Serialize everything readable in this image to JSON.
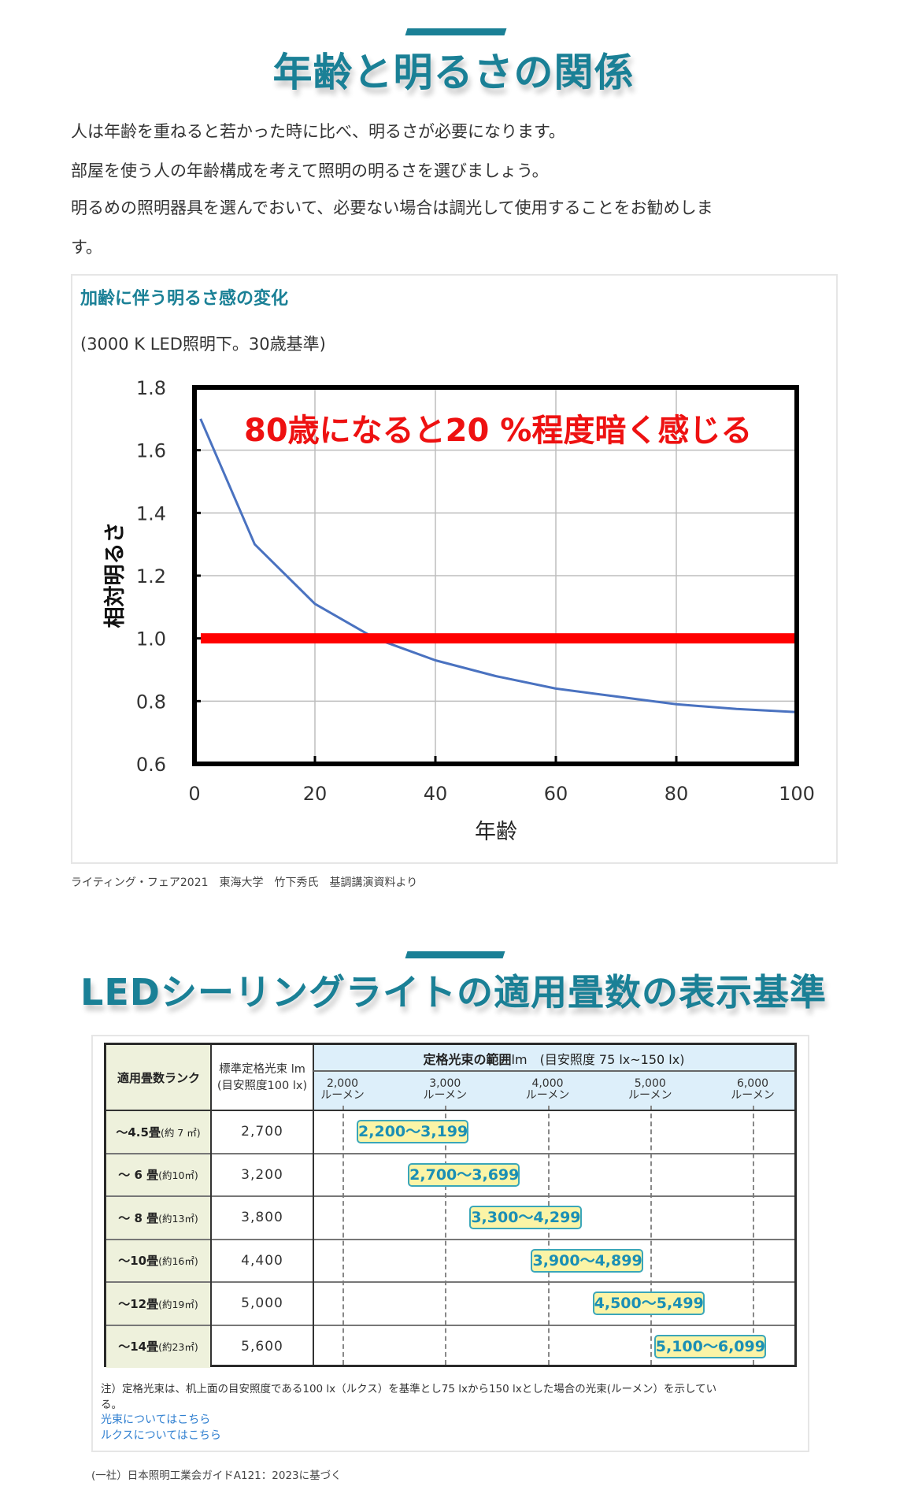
{
  "section1": {
    "title": "年齢と明るさの関係",
    "paragraphs": [
      "人は年齢を重ねると若かった時に比べ、明るさが必要になります。",
      "部屋を使う人の年齢構成を考えて照明の明るさを選びましょう。",
      "明るめの照明器具を選んでおいて、必要ない場合は調光して使用することをお勧めしま",
      "す。"
    ],
    "figure": {
      "title": "加齢に伴う明るさ感の変化",
      "subtitle": "(3000 K LED照明下。30歳基準)"
    },
    "source": "ライティング・フェア2021　東海大学　竹下秀氏　基調講演資料より"
  },
  "chart_data": {
    "type": "line",
    "title": "",
    "xlabel": "年齢",
    "ylabel": "相対明るさ",
    "xlim": [
      0,
      100
    ],
    "ylim": [
      0.6,
      1.8
    ],
    "xticks": [
      0,
      20,
      40,
      60,
      80,
      100
    ],
    "xtick_labels": [
      "0",
      "20",
      "40",
      "60",
      "80",
      "100"
    ],
    "yticks": [
      0.6,
      0.8,
      1.0,
      1.2,
      1.4,
      1.6,
      1.8
    ],
    "ytick_labels": [
      "0.6",
      "0.8",
      "1.0",
      "1.2",
      "1.4",
      "1.6",
      "1.8"
    ],
    "grid": true,
    "annotation": "80歳になると20 %程度暗く感じる",
    "series": [
      {
        "name": "相対明るさ",
        "color": "#4a72c0",
        "x": [
          1,
          10,
          20,
          30,
          40,
          50,
          60,
          70,
          80,
          90,
          100
        ],
        "y": [
          1.7,
          1.3,
          1.11,
          1.0,
          0.93,
          0.88,
          0.84,
          0.815,
          0.79,
          0.775,
          0.765
        ]
      },
      {
        "name": "30歳基準",
        "color": "#ff0000",
        "x": [
          0,
          100
        ],
        "y": [
          1.0,
          1.0
        ]
      }
    ]
  },
  "section2": {
    "title": "LEDシーリングライトの適用畳数の表示基準",
    "table": {
      "header_rank": "適用畳数ランク",
      "header_std_line1": "標準定格光束 lm",
      "header_std_line2": "(目安照度100 lx)",
      "header_range_bold": "定格光束の範囲",
      "header_range_rest": " lm　(目安照度 75 lx~150 lx)",
      "scale": [
        {
          "value": "2,000",
          "unit": "ルーメン"
        },
        {
          "value": "3,000",
          "unit": "ルーメン"
        },
        {
          "value": "4,000",
          "unit": "ルーメン"
        },
        {
          "value": "5,000",
          "unit": "ルーメン"
        },
        {
          "value": "6,000",
          "unit": "ルーメン"
        }
      ],
      "rows": [
        {
          "rank": "〜4.5畳",
          "area": "(約 7 ㎡)",
          "standard": "2,700",
          "range": "2,200〜3,199",
          "min": 2200,
          "max": 3199
        },
        {
          "rank": "〜 6 畳",
          "area": "(約10㎡)",
          "standard": "3,200",
          "range": "2,700〜3,699",
          "min": 2700,
          "max": 3699
        },
        {
          "rank": "〜 8 畳",
          "area": "(約13㎡)",
          "standard": "3,800",
          "range": "3,300〜4,299",
          "min": 3300,
          "max": 4299
        },
        {
          "rank": "〜10畳",
          "area": "(約16㎡)",
          "standard": "4,400",
          "range": "3,900〜4,899",
          "min": 3900,
          "max": 4899
        },
        {
          "rank": "〜12畳",
          "area": "(約19㎡)",
          "standard": "5,000",
          "range": "4,500〜5,499",
          "min": 4500,
          "max": 5499
        },
        {
          "rank": "〜14畳",
          "area": "(約23㎡)",
          "standard": "5,600",
          "range": "5,100〜6,099",
          "min": 5100,
          "max": 6099
        }
      ]
    },
    "note_line1": "注）定格光束は、机上面の目安照度である100 lx（ルクス）を基準とし75 lxから150 lxとした場合の光束(ルーメン）を示してい",
    "note_line2": "る。",
    "links": [
      "光束についてはこちら",
      "ルクスについてはこちら"
    ],
    "source": "(一社）日本照明工業会ガイドA121：2023に基づく"
  }
}
